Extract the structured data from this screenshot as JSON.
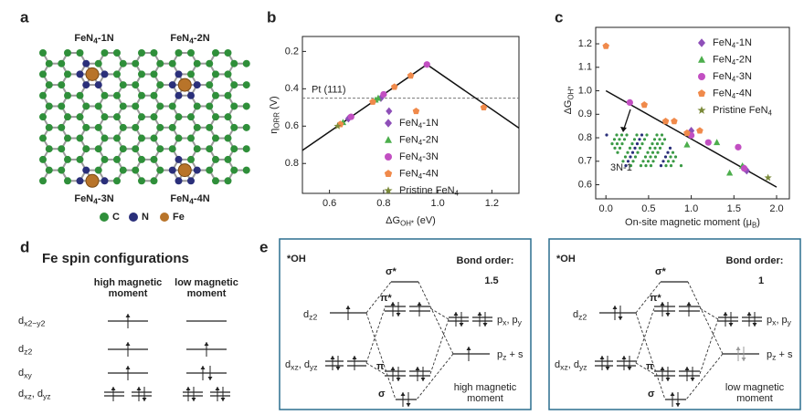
{
  "panel_a": {
    "label": "a",
    "structures": [
      [
        "FeN",
        "4",
        "-1N"
      ],
      [
        "FeN",
        "4",
        "-2N"
      ],
      [
        "FeN",
        "4",
        "-3N"
      ],
      [
        "FeN",
        "4",
        "-4N"
      ]
    ],
    "legend": [
      "C",
      "N",
      "Fe"
    ]
  },
  "chart_data": [
    {
      "type": "scatter",
      "label": "b",
      "xlabel": [
        "ΔG",
        "OH*",
        " (eV)"
      ],
      "ylabel": [
        "η",
        "ORR",
        " (V)"
      ],
      "xlim": [
        0.5,
        1.3
      ],
      "xticks": [
        0.6,
        0.8,
        {
          "value": 1.0,
          "label": "1.0"
        },
        1.2
      ],
      "ylim": [
        0.96,
        0.12
      ],
      "yticks": [
        0.2,
        0.4,
        0.6,
        0.8
      ],
      "reference": {
        "label": "Pt (111)",
        "value": 0.45
      },
      "fit_line": {
        "x": [
          0.5,
          0.96,
          1.3
        ],
        "values": [
          0.73,
          0.27,
          0.61
        ]
      },
      "series": [
        {
          "name": [
            "FeN",
            "4",
            "-1N"
          ],
          "color": "#8e4fb8",
          "marker": "diamond",
          "x": [
            0.67,
            0.82,
            0.79
          ],
          "values": [
            0.56,
            0.52,
            0.45
          ]
        },
        {
          "name": [
            "FeN",
            "4",
            "-2N"
          ],
          "color": "#4cae4c",
          "marker": "triangle",
          "x": [
            0.65,
            0.77,
            0.78
          ],
          "values": [
            0.58,
            0.46,
            0.45
          ]
        },
        {
          "name": [
            "FeN",
            "4",
            "-3N"
          ],
          "color": "#c24fc2",
          "marker": "circle",
          "x": [
            0.96,
            0.68,
            0.8
          ],
          "values": [
            0.27,
            0.55,
            0.43
          ]
        },
        {
          "name": [
            "FeN",
            "4",
            "-4N"
          ],
          "color": "#f08a4b",
          "marker": "pentagon",
          "x": [
            0.64,
            0.84,
            0.9,
            0.92,
            1.17,
            0.76
          ],
          "values": [
            0.59,
            0.39,
            0.33,
            0.52,
            0.5,
            0.47
          ]
        },
        {
          "name": [
            "Pristine FeN",
            "4"
          ],
          "color": "#7b8a3a",
          "marker": "star",
          "x": [
            0.63
          ],
          "values": [
            0.6
          ]
        }
      ]
    },
    {
      "type": "scatter",
      "label": "c",
      "xlabel": [
        "On-site magnetic moment (μ",
        "B",
        ")"
      ],
      "ylabel": [
        "ΔG",
        "OH*"
      ],
      "xlim": [
        -0.12,
        2.15
      ],
      "xticks": [
        {
          "value": 0,
          "label": "0.0"
        },
        0.5,
        {
          "value": 1,
          "label": "1.0"
        },
        1.5,
        {
          "value": 2,
          "label": "2.0"
        }
      ],
      "ylim": [
        0.54,
        1.27
      ],
      "yticks": [
        0.6,
        0.7,
        0.8,
        0.9,
        {
          "value": 1,
          "label": "1.0"
        },
        1.1,
        1.2
      ],
      "fit_line": {
        "x": [
          0,
          2
        ],
        "values": [
          1.0,
          0.59
        ]
      },
      "inset_label": "3N-1",
      "series": [
        {
          "name": [
            "FeN",
            "4",
            "-1N"
          ],
          "color": "#8e4fb8",
          "marker": "diamond",
          "x": [
            1.0,
            1.62,
            1.65
          ],
          "values": [
            0.83,
            0.67,
            0.66
          ]
        },
        {
          "name": [
            "FeN",
            "4",
            "-2N"
          ],
          "color": "#4cae4c",
          "marker": "triangle",
          "x": [
            0.95,
            1.3,
            1.45,
            1.6
          ],
          "values": [
            0.77,
            0.78,
            0.65,
            0.68
          ]
        },
        {
          "name": [
            "FeN",
            "4",
            "-3N"
          ],
          "color": "#c24fc2",
          "marker": "circle",
          "x": [
            0.28,
            1.0,
            1.2,
            1.55,
            1.62
          ],
          "values": [
            0.95,
            0.81,
            0.78,
            0.76,
            0.67
          ]
        },
        {
          "name": [
            "FeN",
            "4",
            "-4N"
          ],
          "color": "#f08a4b",
          "marker": "pentagon",
          "x": [
            0,
            0.45,
            0.7,
            0.8,
            1.1,
            0.95
          ],
          "values": [
            1.19,
            0.94,
            0.87,
            0.87,
            0.83,
            0.82
          ]
        },
        {
          "name": [
            "Pristine FeN",
            "4"
          ],
          "color": "#7b8a3a",
          "marker": "star",
          "x": [
            1.9
          ],
          "values": [
            0.63
          ]
        }
      ]
    }
  ],
  "panel_d": {
    "label": "d",
    "title": "Fe spin configurations",
    "columns": [
      [
        "high magnetic",
        "moment"
      ],
      [
        "low magnetic",
        "moment"
      ]
    ],
    "orbitals": [
      [
        "d",
        "x2−y2"
      ],
      [
        "d",
        "z2"
      ],
      [
        "d",
        "xy"
      ],
      [
        "d",
        "xz",
        ", d",
        "yz"
      ]
    ]
  },
  "panel_e": {
    "label": "e",
    "diagrams": [
      {
        "adsorbate": "*OH",
        "sigma_star": "σ*",
        "pi_star": "π*",
        "pi": "π",
        "sigma": "σ",
        "bond_order_label": "Bond order:",
        "bond_order": 1.5,
        "dz2": [
          "d",
          "z2"
        ],
        "dxz": [
          "d",
          "xz",
          ", d",
          "yz"
        ],
        "pxpy": [
          "p",
          "x",
          ", p",
          "y"
        ],
        "pz": [
          "p",
          "z",
          " + s"
        ],
        "moment": [
          "high magnetic",
          "moment"
        ]
      },
      {
        "adsorbate": "*OH",
        "sigma_star": "σ*",
        "pi_star": "π*",
        "pi": "π",
        "sigma": "σ",
        "bond_order_label": "Bond order:",
        "bond_order": 1,
        "dz2": [
          "d",
          "z2"
        ],
        "dxz": [
          "d",
          "xz",
          ", d",
          "yz"
        ],
        "pxpy": [
          "p",
          "x",
          ", p",
          "y"
        ],
        "pz": [
          "p",
          "z",
          " + s"
        ],
        "moment": [
          "low magnetic",
          "moment"
        ]
      }
    ]
  }
}
